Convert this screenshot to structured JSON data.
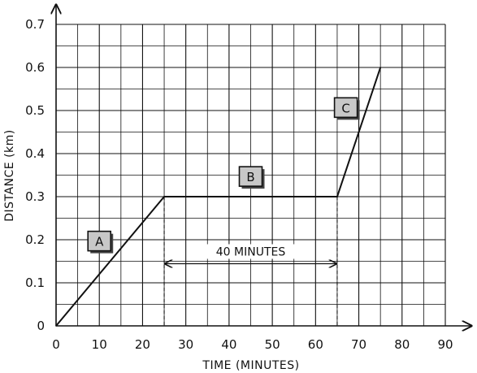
{
  "chart_data": {
    "type": "line",
    "xlabel": "TIME  (MINUTES)",
    "ylabel": "DISTANCE (km)",
    "xlim": [
      0,
      90
    ],
    "ylim": [
      0,
      0.7
    ],
    "x_ticks": [
      "0",
      "10",
      "20",
      "30",
      "40",
      "50",
      "60",
      "70",
      "80",
      "90"
    ],
    "y_ticks": [
      "0",
      "0.1",
      "0.2",
      "0.3",
      "0.4",
      "0.5",
      "0.6",
      "0.7"
    ],
    "grid": true,
    "series": [
      {
        "x": [
          0,
          25,
          65,
          75
        ],
        "y": [
          0,
          0.3,
          0.3,
          0.6
        ]
      }
    ],
    "segment_labels": [
      {
        "text": "A",
        "x": 10,
        "y": 0.195
      },
      {
        "text": "B",
        "x": 45,
        "y": 0.345
      },
      {
        "text": "C",
        "x": 67,
        "y": 0.505
      }
    ],
    "annotation": {
      "text": "40 MINUTES",
      "x_start": 25,
      "x_end": 65,
      "y": 0.15
    },
    "colors": {
      "line": "#111111",
      "grid": "#111111",
      "label_box": "#c8c8c8"
    }
  }
}
